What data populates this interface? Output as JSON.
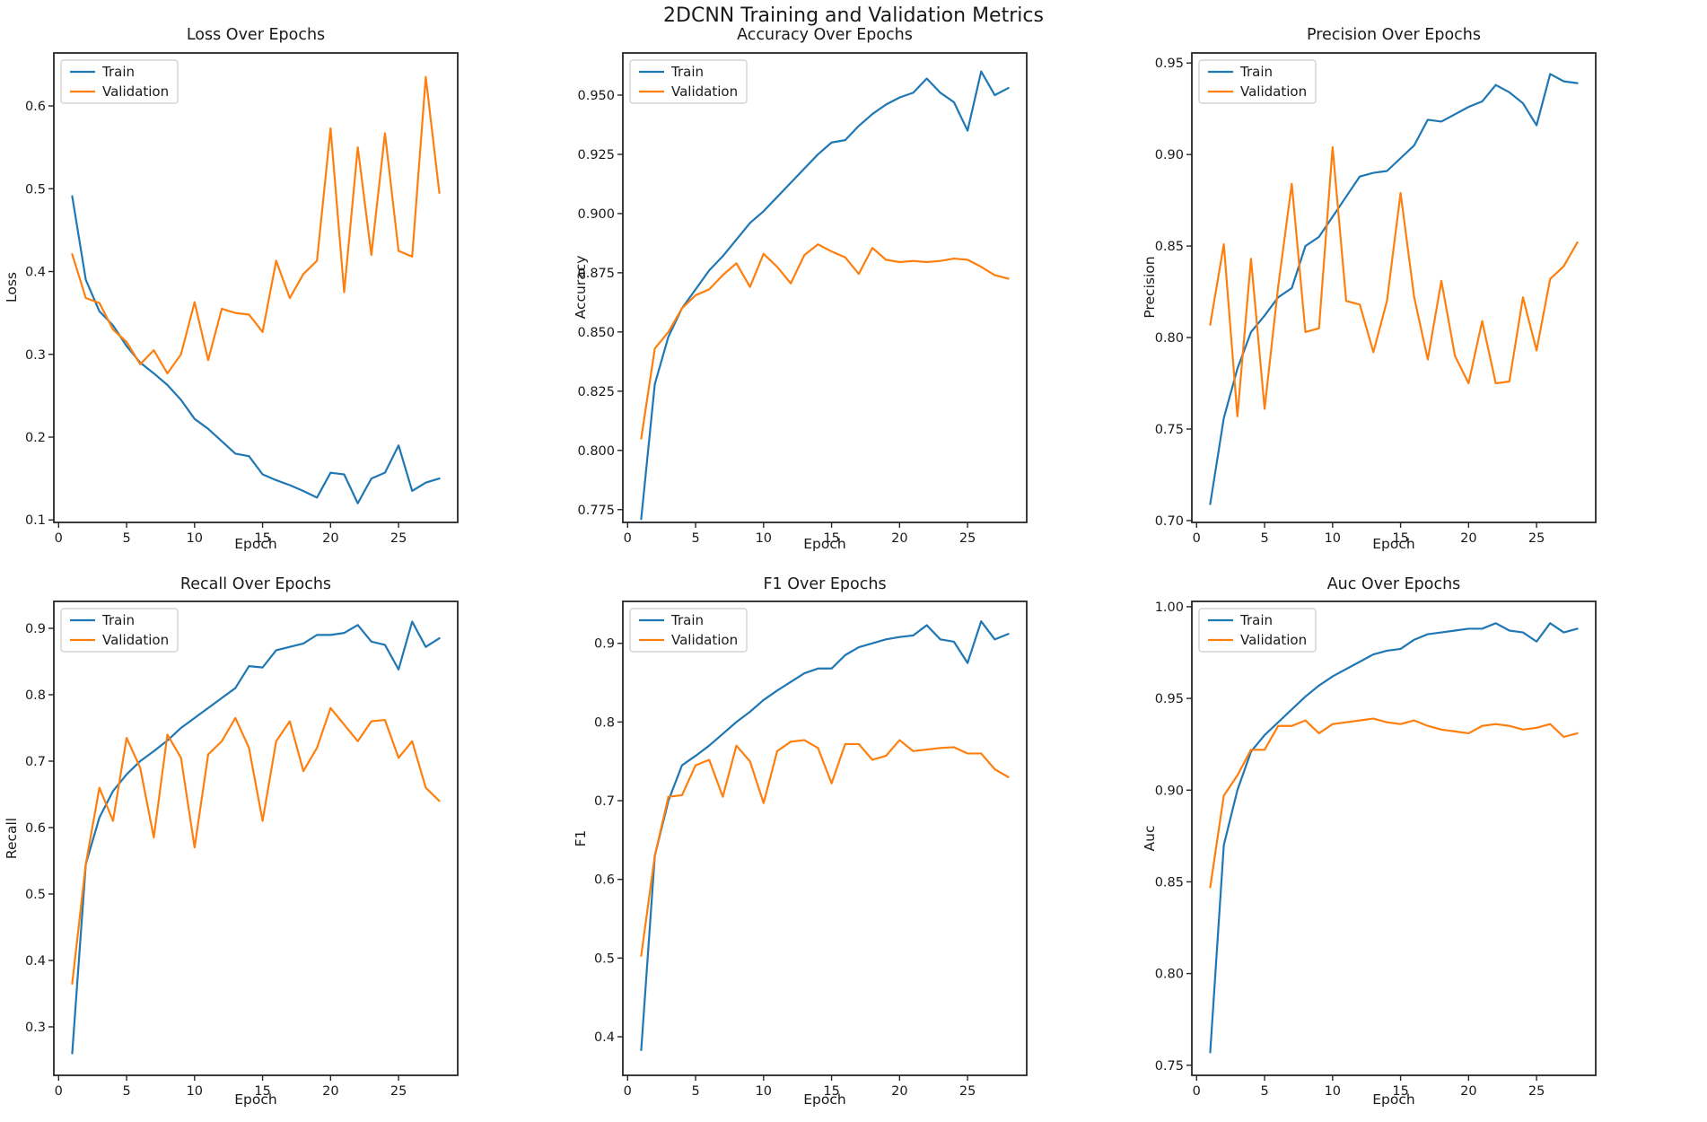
{
  "figure": {
    "suptitle": "2DCNN Training and Validation Metrics",
    "colors": {
      "train": "#1f77b4",
      "validation": "#ff7f0e",
      "spine": "#262626",
      "text": "#1a1a1a",
      "legend_border": "#cccccc",
      "background": "#ffffff"
    },
    "legend": {
      "train_label": "Train",
      "validation_label": "Validation",
      "position": "upper left"
    }
  },
  "chart_data": [
    {
      "id": "loss",
      "type": "line",
      "title": "Loss Over Epochs",
      "xlabel": "Epoch",
      "ylabel": "Loss",
      "grid": false,
      "legend_position": "upper left",
      "x": [
        1,
        2,
        3,
        4,
        5,
        6,
        7,
        8,
        9,
        10,
        11,
        12,
        13,
        14,
        15,
        16,
        17,
        18,
        19,
        20,
        21,
        22,
        23,
        24,
        25,
        26,
        27,
        28
      ],
      "xlim": [
        -0.35,
        29.35
      ],
      "ylim": [
        0.097,
        0.664
      ],
      "xticks": [
        0,
        5,
        10,
        15,
        20,
        25
      ],
      "xtick_labels": [
        "0",
        "5",
        "10",
        "15",
        "20",
        "25"
      ],
      "yticks": [
        0.1,
        0.2,
        0.3,
        0.4,
        0.5,
        0.6
      ],
      "ytick_labels": [
        "0.1",
        "0.2",
        "0.3",
        "0.4",
        "0.5",
        "0.6"
      ],
      "series": [
        {
          "name": "Train",
          "color": "#1f77b4",
          "values": [
            0.491,
            0.39,
            0.352,
            0.335,
            0.31,
            0.29,
            0.277,
            0.263,
            0.245,
            0.222,
            0.21,
            0.195,
            0.18,
            0.177,
            0.155,
            0.148,
            0.142,
            0.135,
            0.127,
            0.157,
            0.155,
            0.12,
            0.15,
            0.157,
            0.19,
            0.135,
            0.145,
            0.15
          ]
        },
        {
          "name": "Validation",
          "color": "#ff7f0e",
          "values": [
            0.421,
            0.368,
            0.362,
            0.33,
            0.315,
            0.288,
            0.305,
            0.277,
            0.3,
            0.363,
            0.293,
            0.355,
            0.35,
            0.348,
            0.327,
            0.413,
            0.368,
            0.397,
            0.413,
            0.573,
            0.375,
            0.55,
            0.42,
            0.567,
            0.425,
            0.418,
            0.635,
            0.495
          ]
        }
      ]
    },
    {
      "id": "accuracy",
      "type": "line",
      "title": "Accuracy Over Epochs",
      "xlabel": "Epoch",
      "ylabel": "Accuracy",
      "grid": false,
      "legend_position": "upper left",
      "x": [
        1,
        2,
        3,
        4,
        5,
        6,
        7,
        8,
        9,
        10,
        11,
        12,
        13,
        14,
        15,
        16,
        17,
        18,
        19,
        20,
        21,
        22,
        23,
        24,
        25,
        26,
        27,
        28
      ],
      "xlim": [
        -0.35,
        29.35
      ],
      "ylim": [
        0.7696,
        0.9678
      ],
      "xticks": [
        0,
        5,
        10,
        15,
        20,
        25
      ],
      "xtick_labels": [
        "0",
        "5",
        "10",
        "15",
        "20",
        "25"
      ],
      "yticks": [
        0.775,
        0.8,
        0.825,
        0.85,
        0.875,
        0.9,
        0.925,
        0.95
      ],
      "ytick_labels": [
        "0.775",
        "0.800",
        "0.825",
        "0.850",
        "0.875",
        "0.900",
        "0.925",
        "0.950"
      ],
      "series": [
        {
          "name": "Train",
          "color": "#1f77b4",
          "values": [
            0.771,
            0.828,
            0.848,
            0.86,
            0.868,
            0.876,
            0.882,
            0.889,
            0.896,
            0.901,
            0.907,
            0.913,
            0.919,
            0.925,
            0.93,
            0.931,
            0.937,
            0.942,
            0.946,
            0.949,
            0.951,
            0.957,
            0.951,
            0.947,
            0.935,
            0.96,
            0.95,
            0.953
          ]
        },
        {
          "name": "Validation",
          "color": "#ff7f0e",
          "values": [
            0.805,
            0.843,
            0.85,
            0.86,
            0.8655,
            0.868,
            0.874,
            0.879,
            0.869,
            0.883,
            0.8775,
            0.8705,
            0.8825,
            0.887,
            0.884,
            0.8815,
            0.8745,
            0.8855,
            0.8805,
            0.8795,
            0.88,
            0.8795,
            0.88,
            0.881,
            0.8805,
            0.8775,
            0.874,
            0.8725
          ]
        }
      ]
    },
    {
      "id": "precision",
      "type": "line",
      "title": "Precision Over Epochs",
      "xlabel": "Epoch",
      "ylabel": "Precision",
      "grid": false,
      "legend_position": "upper left",
      "x": [
        1,
        2,
        3,
        4,
        5,
        6,
        7,
        8,
        9,
        10,
        11,
        12,
        13,
        14,
        15,
        16,
        17,
        18,
        19,
        20,
        21,
        22,
        23,
        24,
        25,
        26,
        27,
        28
      ],
      "xlim": [
        -0.35,
        29.35
      ],
      "ylim": [
        0.699,
        0.9555
      ],
      "xticks": [
        0,
        5,
        10,
        15,
        20,
        25
      ],
      "xtick_labels": [
        "0",
        "5",
        "10",
        "15",
        "20",
        "25"
      ],
      "yticks": [
        0.7,
        0.75,
        0.8,
        0.85,
        0.9,
        0.95
      ],
      "ytick_labels": [
        "0.70",
        "0.75",
        "0.80",
        "0.85",
        "0.90",
        "0.95"
      ],
      "series": [
        {
          "name": "Train",
          "color": "#1f77b4",
          "values": [
            0.709,
            0.756,
            0.783,
            0.803,
            0.812,
            0.822,
            0.827,
            0.85,
            0.855,
            0.866,
            0.877,
            0.888,
            0.89,
            0.891,
            0.898,
            0.905,
            0.919,
            0.918,
            0.922,
            0.926,
            0.929,
            0.938,
            0.934,
            0.928,
            0.916,
            0.944,
            0.94,
            0.939
          ]
        },
        {
          "name": "Validation",
          "color": "#ff7f0e",
          "values": [
            0.807,
            0.851,
            0.757,
            0.843,
            0.761,
            0.828,
            0.884,
            0.803,
            0.805,
            0.904,
            0.82,
            0.818,
            0.792,
            0.82,
            0.879,
            0.822,
            0.788,
            0.831,
            0.79,
            0.775,
            0.809,
            0.775,
            0.776,
            0.822,
            0.793,
            0.832,
            0.839,
            0.852
          ]
        }
      ]
    },
    {
      "id": "recall",
      "type": "line",
      "title": "Recall Over Epochs",
      "xlabel": "Epoch",
      "ylabel": "Recall",
      "grid": false,
      "legend_position": "upper left",
      "x": [
        1,
        2,
        3,
        4,
        5,
        6,
        7,
        8,
        9,
        10,
        11,
        12,
        13,
        14,
        15,
        16,
        17,
        18,
        19,
        20,
        21,
        22,
        23,
        24,
        25,
        26,
        27,
        28
      ],
      "xlim": [
        -0.35,
        29.35
      ],
      "ylim": [
        0.227,
        0.9405
      ],
      "xticks": [
        0,
        5,
        10,
        15,
        20,
        25
      ],
      "xtick_labels": [
        "0",
        "5",
        "10",
        "15",
        "20",
        "25"
      ],
      "yticks": [
        0.3,
        0.4,
        0.5,
        0.6,
        0.7,
        0.8,
        0.9
      ],
      "ytick_labels": [
        "0.3",
        "0.4",
        "0.5",
        "0.6",
        "0.7",
        "0.8",
        "0.9"
      ],
      "series": [
        {
          "name": "Train",
          "color": "#1f77b4",
          "values": [
            0.26,
            0.545,
            0.615,
            0.655,
            0.68,
            0.7,
            0.715,
            0.731,
            0.75,
            0.765,
            0.78,
            0.795,
            0.81,
            0.843,
            0.841,
            0.867,
            0.872,
            0.877,
            0.89,
            0.89,
            0.893,
            0.905,
            0.88,
            0.875,
            0.838,
            0.91,
            0.872,
            0.885
          ]
        },
        {
          "name": "Validation",
          "color": "#ff7f0e",
          "values": [
            0.365,
            0.545,
            0.66,
            0.61,
            0.735,
            0.69,
            0.585,
            0.74,
            0.705,
            0.57,
            0.71,
            0.73,
            0.765,
            0.72,
            0.61,
            0.73,
            0.76,
            0.685,
            0.72,
            0.78,
            0.755,
            0.73,
            0.76,
            0.762,
            0.705,
            0.73,
            0.66,
            0.64
          ]
        }
      ]
    },
    {
      "id": "f1",
      "type": "line",
      "title": "F1 Over Epochs",
      "xlabel": "Epoch",
      "ylabel": "F1",
      "grid": false,
      "legend_position": "upper left",
      "x": [
        1,
        2,
        3,
        4,
        5,
        6,
        7,
        8,
        9,
        10,
        11,
        12,
        13,
        14,
        15,
        16,
        17,
        18,
        19,
        20,
        21,
        22,
        23,
        24,
        25,
        26,
        27,
        28
      ],
      "xlim": [
        -0.35,
        29.35
      ],
      "ylim": [
        0.351,
        0.9533
      ],
      "xticks": [
        0,
        5,
        10,
        15,
        20,
        25
      ],
      "xtick_labels": [
        "0",
        "5",
        "10",
        "15",
        "20",
        "25"
      ],
      "yticks": [
        0.4,
        0.5,
        0.6,
        0.7,
        0.8,
        0.9
      ],
      "ytick_labels": [
        "0.4",
        "0.5",
        "0.6",
        "0.7",
        "0.8",
        "0.9"
      ],
      "series": [
        {
          "name": "Train",
          "color": "#1f77b4",
          "values": [
            0.383,
            0.63,
            0.7,
            0.745,
            0.757,
            0.77,
            0.785,
            0.8,
            0.813,
            0.828,
            0.84,
            0.851,
            0.862,
            0.868,
            0.868,
            0.885,
            0.895,
            0.9,
            0.905,
            0.908,
            0.91,
            0.923,
            0.905,
            0.902,
            0.875,
            0.928,
            0.905,
            0.912
          ]
        },
        {
          "name": "Validation",
          "color": "#ff7f0e",
          "values": [
            0.503,
            0.63,
            0.705,
            0.707,
            0.745,
            0.752,
            0.705,
            0.77,
            0.75,
            0.697,
            0.763,
            0.775,
            0.777,
            0.767,
            0.722,
            0.772,
            0.772,
            0.752,
            0.757,
            0.777,
            0.763,
            0.765,
            0.767,
            0.768,
            0.76,
            0.76,
            0.74,
            0.73
          ]
        }
      ]
    },
    {
      "id": "auc",
      "type": "line",
      "title": "Auc Over Epochs",
      "xlabel": "Epoch",
      "ylabel": "Auc",
      "grid": false,
      "legend_position": "upper left",
      "x": [
        1,
        2,
        3,
        4,
        5,
        6,
        7,
        8,
        9,
        10,
        11,
        12,
        13,
        14,
        15,
        16,
        17,
        18,
        19,
        20,
        21,
        22,
        23,
        24,
        25,
        26,
        27,
        28
      ],
      "xlim": [
        -0.35,
        29.35
      ],
      "ylim": [
        0.7445,
        1.0029
      ],
      "xticks": [
        0,
        5,
        10,
        15,
        20,
        25
      ],
      "xtick_labels": [
        "0",
        "5",
        "10",
        "15",
        "20",
        "25"
      ],
      "yticks": [
        0.75,
        0.8,
        0.85,
        0.9,
        0.95,
        1.0
      ],
      "ytick_labels": [
        "0.75",
        "0.80",
        "0.85",
        "0.90",
        "0.95",
        "1.00"
      ],
      "series": [
        {
          "name": "Train",
          "color": "#1f77b4",
          "values": [
            0.757,
            0.87,
            0.9,
            0.921,
            0.93,
            0.937,
            0.944,
            0.951,
            0.957,
            0.962,
            0.966,
            0.97,
            0.974,
            0.976,
            0.977,
            0.982,
            0.985,
            0.986,
            0.987,
            0.988,
            0.988,
            0.991,
            0.987,
            0.986,
            0.981,
            0.991,
            0.986,
            0.988
          ]
        },
        {
          "name": "Validation",
          "color": "#ff7f0e",
          "values": [
            0.847,
            0.897,
            0.908,
            0.922,
            0.922,
            0.935,
            0.935,
            0.938,
            0.931,
            0.936,
            0.937,
            0.938,
            0.939,
            0.937,
            0.936,
            0.938,
            0.935,
            0.933,
            0.932,
            0.931,
            0.935,
            0.936,
            0.935,
            0.933,
            0.934,
            0.936,
            0.929,
            0.931
          ]
        }
      ]
    }
  ]
}
